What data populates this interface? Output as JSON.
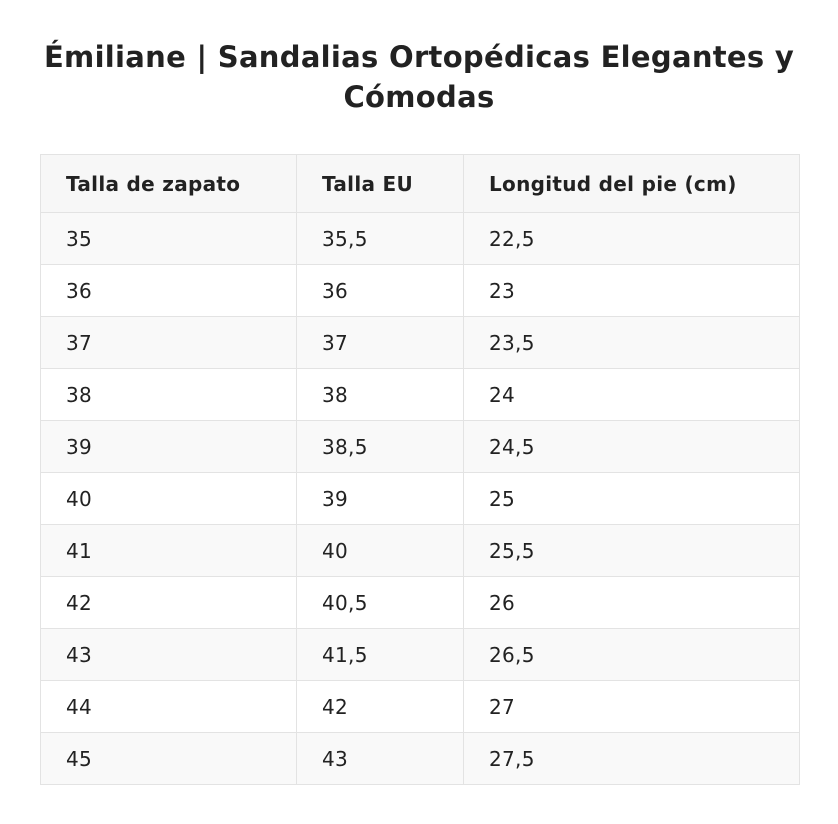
{
  "title": "Émiliane | Sandalias Ortopédicas Elegantes y Cómodas",
  "table": {
    "headers": [
      "Talla de zapato",
      "Talla EU",
      "Longitud del pie (cm)"
    ],
    "rows": [
      [
        "35",
        "35,5",
        "22,5"
      ],
      [
        "36",
        "36",
        "23"
      ],
      [
        "37",
        "37",
        "23,5"
      ],
      [
        "38",
        "38",
        "24"
      ],
      [
        "39",
        "38,5",
        "24,5"
      ],
      [
        "40",
        "39",
        "25"
      ],
      [
        "41",
        "40",
        "25,5"
      ],
      [
        "42",
        "40,5",
        "26"
      ],
      [
        "43",
        "41,5",
        "26,5"
      ],
      [
        "44",
        "42",
        "27"
      ],
      [
        "45",
        "43",
        "27,5"
      ]
    ]
  }
}
